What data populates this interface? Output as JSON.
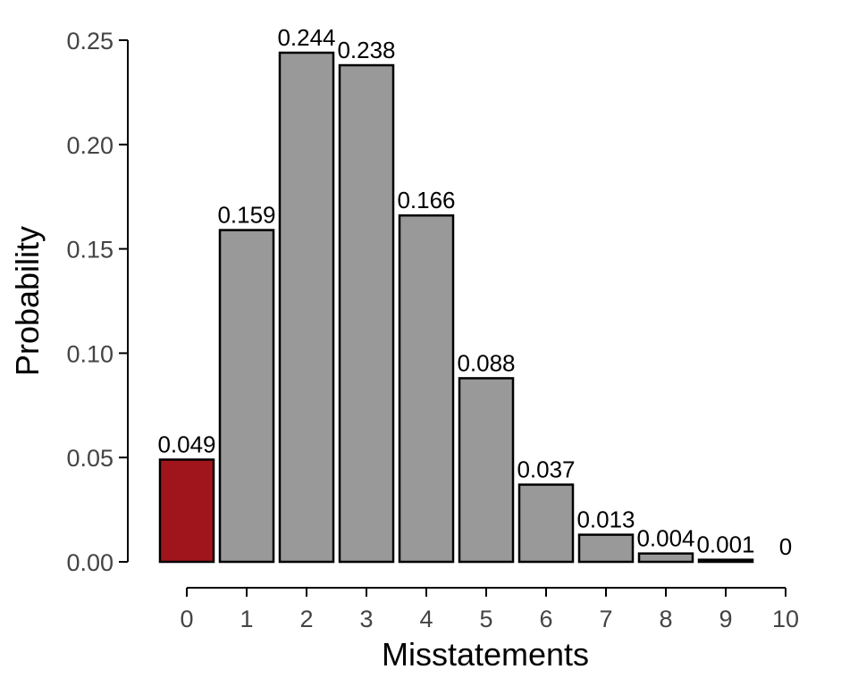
{
  "chart_data": {
    "type": "bar",
    "title": "",
    "xlabel": "Misstatements",
    "ylabel": "Probability",
    "categories": [
      "0",
      "1",
      "2",
      "3",
      "4",
      "5",
      "6",
      "7",
      "8",
      "9",
      "10"
    ],
    "values": [
      0.049,
      0.159,
      0.244,
      0.238,
      0.166,
      0.088,
      0.037,
      0.013,
      0.004,
      0.001,
      0
    ],
    "value_labels": [
      "0.049",
      "0.159",
      "0.244",
      "0.238",
      "0.166",
      "0.088",
      "0.037",
      "0.013",
      "0.004",
      "0.001",
      "0"
    ],
    "ylim": [
      0,
      0.25
    ],
    "yticks": [
      0,
      0.05,
      0.1,
      0.15,
      0.2,
      0.25
    ],
    "ytick_labels": [
      "0.00",
      "0.05",
      "0.10",
      "0.15",
      "0.20",
      "0.25"
    ],
    "highlight_index": 0,
    "colors": {
      "highlight": "#a0151c",
      "bar": "#999999",
      "outline": "#000000"
    },
    "grid": false,
    "legend": "none"
  }
}
